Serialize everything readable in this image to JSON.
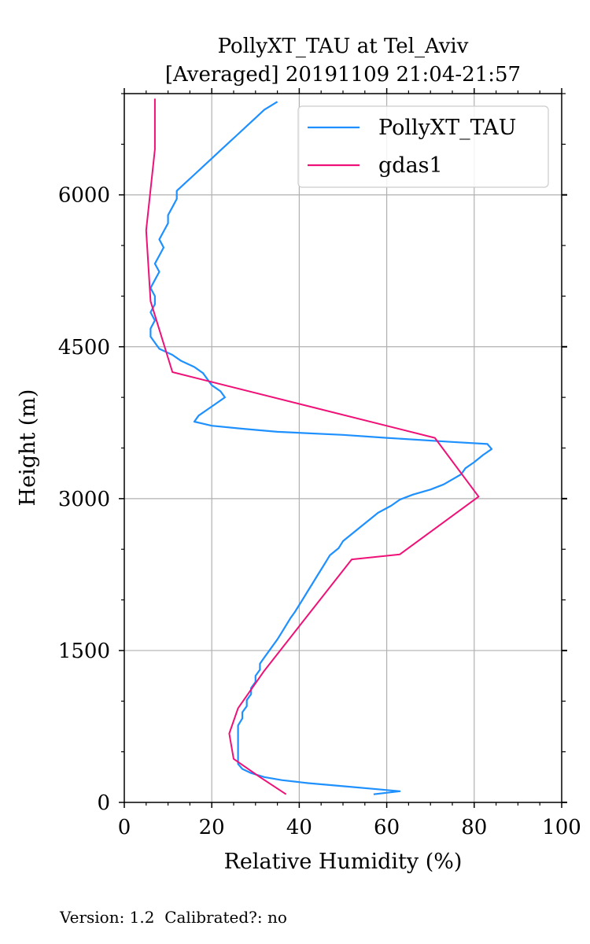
{
  "chart_data": {
    "type": "line",
    "title": "PollyXT_TAU at Tel_Aviv",
    "subtitle": "[Averaged] 20191109 21:04-21:57",
    "xlabel": "Relative Humidity (%)",
    "ylabel": "Height (m)",
    "xlim": [
      0,
      100
    ],
    "ylim": [
      0,
      7000
    ],
    "xticks": [
      0,
      20,
      40,
      60,
      80,
      100
    ],
    "yticks": [
      0,
      1500,
      3000,
      4500,
      6000
    ],
    "grid": true,
    "legend_position": "top-right",
    "series": [
      {
        "name": "PollyXT_TAU",
        "color": "#1e90ff",
        "points": [
          [
            57,
            80
          ],
          [
            63,
            110
          ],
          [
            58,
            130
          ],
          [
            50,
            160
          ],
          [
            42,
            190
          ],
          [
            36,
            220
          ],
          [
            32,
            250
          ],
          [
            29,
            290
          ],
          [
            27,
            330
          ],
          [
            26,
            380
          ],
          [
            26,
            450
          ],
          [
            26,
            520
          ],
          [
            26,
            600
          ],
          [
            26,
            680
          ],
          [
            26,
            760
          ],
          [
            27,
            830
          ],
          [
            27,
            890
          ],
          [
            28,
            950
          ],
          [
            28,
            1010
          ],
          [
            29,
            1070
          ],
          [
            29,
            1130
          ],
          [
            30,
            1190
          ],
          [
            30,
            1250
          ],
          [
            31,
            1310
          ],
          [
            31,
            1370
          ],
          [
            32,
            1430
          ],
          [
            33,
            1490
          ],
          [
            34,
            1550
          ],
          [
            35,
            1610
          ],
          [
            36,
            1680
          ],
          [
            37,
            1750
          ],
          [
            38,
            1820
          ],
          [
            39,
            1880
          ],
          [
            40,
            1950
          ],
          [
            41,
            2020
          ],
          [
            42,
            2090
          ],
          [
            43,
            2160
          ],
          [
            44,
            2230
          ],
          [
            45,
            2300
          ],
          [
            46,
            2370
          ],
          [
            47,
            2440
          ],
          [
            49,
            2510
          ],
          [
            50,
            2580
          ],
          [
            52,
            2650
          ],
          [
            54,
            2720
          ],
          [
            56,
            2790
          ],
          [
            58,
            2860
          ],
          [
            61,
            2930
          ],
          [
            63,
            2990
          ],
          [
            66,
            3040
          ],
          [
            70,
            3090
          ],
          [
            73,
            3140
          ],
          [
            75,
            3190
          ],
          [
            77,
            3240
          ],
          [
            78,
            3300
          ],
          [
            80,
            3360
          ],
          [
            82,
            3430
          ],
          [
            84,
            3490
          ],
          [
            83,
            3540
          ],
          [
            75,
            3560
          ],
          [
            60,
            3600
          ],
          [
            50,
            3630
          ],
          [
            35,
            3660
          ],
          [
            27,
            3690
          ],
          [
            20,
            3720
          ],
          [
            16,
            3760
          ],
          [
            17,
            3820
          ],
          [
            19,
            3880
          ],
          [
            21,
            3940
          ],
          [
            23,
            4000
          ],
          [
            22,
            4060
          ],
          [
            20,
            4120
          ],
          [
            19,
            4180
          ],
          [
            18,
            4240
          ],
          [
            16,
            4300
          ],
          [
            13,
            4360
          ],
          [
            11,
            4420
          ],
          [
            8,
            4480
          ],
          [
            7,
            4540
          ],
          [
            6,
            4600
          ],
          [
            6,
            4680
          ],
          [
            7,
            4760
          ],
          [
            6,
            4840
          ],
          [
            7,
            4920
          ],
          [
            7,
            5000
          ],
          [
            6,
            5080
          ],
          [
            7,
            5160
          ],
          [
            8,
            5240
          ],
          [
            7,
            5320
          ],
          [
            8,
            5400
          ],
          [
            9,
            5480
          ],
          [
            8,
            5560
          ],
          [
            9,
            5640
          ],
          [
            10,
            5720
          ],
          [
            10,
            5800
          ],
          [
            11,
            5880
          ],
          [
            12,
            5960
          ],
          [
            12,
            6040
          ],
          [
            14,
            6120
          ],
          [
            16,
            6200
          ],
          [
            18,
            6280
          ],
          [
            20,
            6360
          ],
          [
            22,
            6440
          ],
          [
            24,
            6520
          ],
          [
            26,
            6600
          ],
          [
            28,
            6680
          ],
          [
            30,
            6760
          ],
          [
            32,
            6840
          ],
          [
            35,
            6920
          ]
        ]
      },
      {
        "name": "gdas1",
        "color": "#ee1177",
        "points": [
          [
            37,
            80
          ],
          [
            31,
            250
          ],
          [
            25,
            430
          ],
          [
            24,
            680
          ],
          [
            26,
            930
          ],
          [
            32,
            1300
          ],
          [
            42,
            1850
          ],
          [
            52,
            2400
          ],
          [
            63,
            2450
          ],
          [
            81,
            3020
          ],
          [
            71,
            3600
          ],
          [
            11,
            4250
          ],
          [
            6,
            4950
          ],
          [
            5,
            5650
          ],
          [
            7,
            6450
          ],
          [
            7,
            6950
          ]
        ]
      }
    ]
  },
  "footer": {
    "text": "Version: 1.2  Calibrated?: no"
  }
}
